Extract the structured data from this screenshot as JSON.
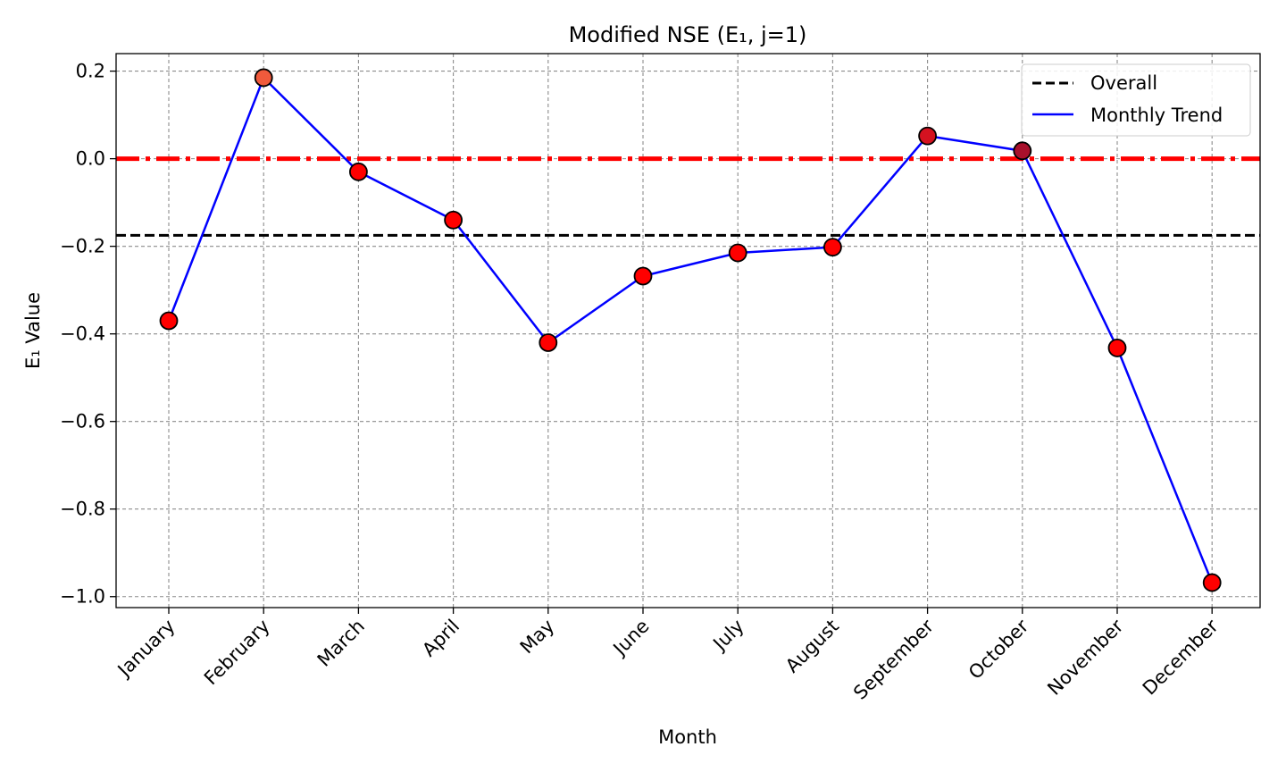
{
  "chart_data": {
    "type": "line",
    "title": "Modified NSE (E₁, j=1)",
    "xlabel": "Month",
    "ylabel": "E₁ Value",
    "categories": [
      "January",
      "February",
      "March",
      "April",
      "May",
      "June",
      "July",
      "August",
      "September",
      "October",
      "November",
      "December"
    ],
    "series": [
      {
        "name": "Monthly Trend",
        "color": "#0000ff",
        "values": [
          -0.37,
          0.185,
          -0.03,
          -0.14,
          -0.42,
          -0.268,
          -0.215,
          -0.202,
          0.052,
          0.018,
          -0.432,
          -0.968
        ]
      }
    ],
    "point_colors": [
      "#ff0000",
      "#f05a3c",
      "#ff0000",
      "#ff0000",
      "#ff0000",
      "#ff0000",
      "#ff0000",
      "#ff0000",
      "#d41220",
      "#a8102c",
      "#ff0000",
      "#ff0000"
    ],
    "reference_lines": [
      {
        "name": "Overall",
        "value": -0.175,
        "color": "#000000",
        "style": "dashed"
      },
      {
        "name": "",
        "value": 0.0,
        "color": "#ff0000",
        "style": "dashdot"
      }
    ],
    "ylim": [
      -1.025,
      0.24
    ],
    "yticks": [
      0.2,
      0.0,
      -0.2,
      -0.4,
      -0.6,
      -0.8,
      -1.0
    ],
    "ytick_labels": [
      "0.2",
      "0.0",
      "−0.2",
      "−0.4",
      "−0.6",
      "−0.8",
      "−1.0"
    ],
    "grid": true,
    "legend": {
      "placement": "top-right",
      "entries": [
        {
          "label": "Overall",
          "color": "#000000",
          "style": "dashed"
        },
        {
          "label": "Monthly Trend",
          "color": "#0000ff",
          "style": "solid"
        }
      ]
    }
  }
}
